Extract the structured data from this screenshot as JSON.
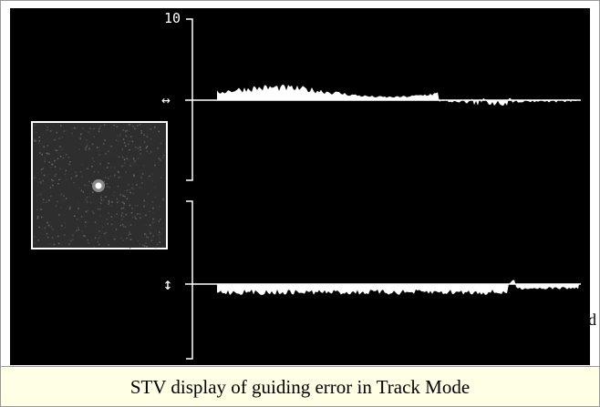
{
  "display": {
    "scale_label": "10",
    "horizontal_axis_symbol": "↔",
    "vertical_axis_symbol": "↕"
  },
  "caption": "STV display of guiding error in Track Mode",
  "edge_text": "d"
}
